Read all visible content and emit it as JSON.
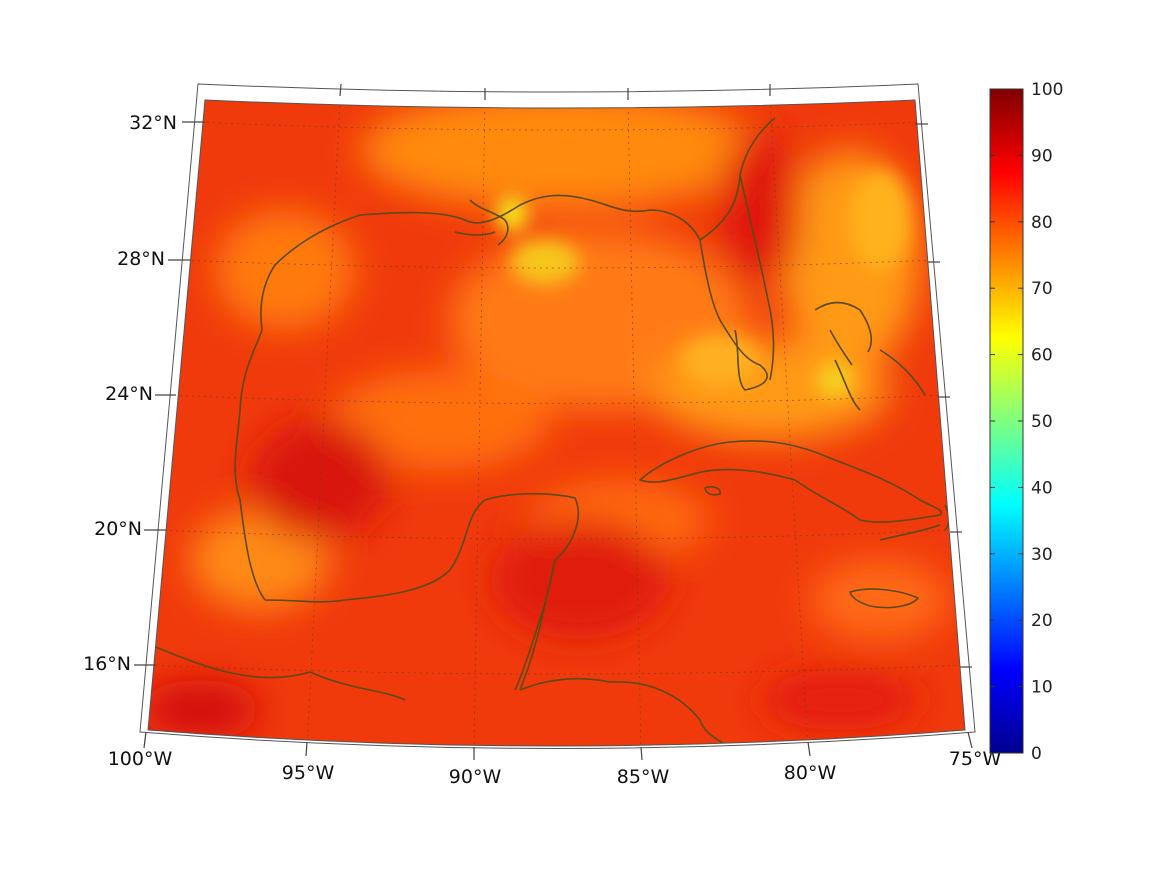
{
  "map": {
    "lon_labels": [
      "100°W",
      "95°W",
      "90°W",
      "85°W",
      "80°W",
      "75°W"
    ],
    "lat_labels": [
      "32°N",
      "28°N",
      "24°N",
      "20°N",
      "16°N"
    ],
    "coastline_color": "#5c4a12",
    "field_colors": {
      "base": "#f03a0c",
      "warm_orange": "#ff8a10",
      "yellow": "#f7d21a",
      "deep_red": "#d8140c"
    }
  },
  "colorbar": {
    "colormap": "jet",
    "tick_labels": [
      "100",
      "90",
      "80",
      "70",
      "60",
      "50",
      "40",
      "30",
      "20",
      "10",
      "0"
    ],
    "range": [
      0,
      100
    ]
  }
}
